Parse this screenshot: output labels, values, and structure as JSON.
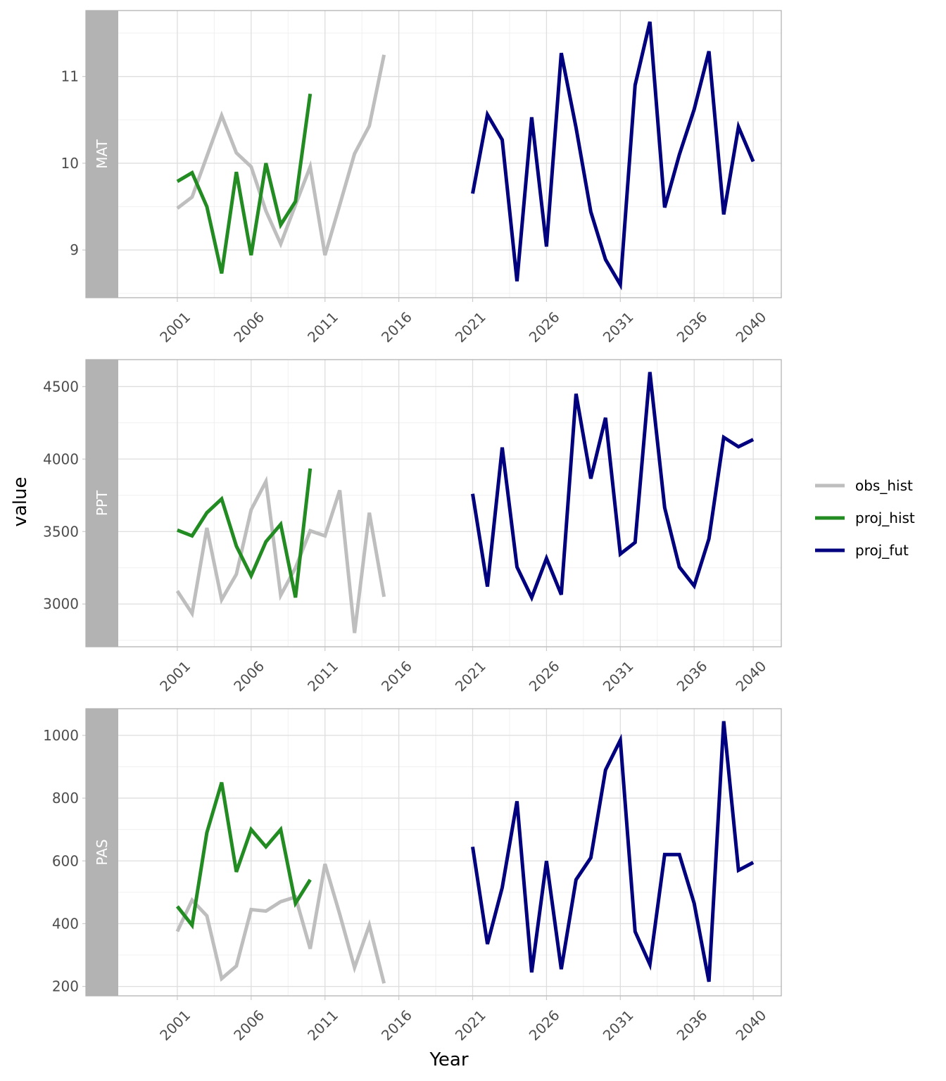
{
  "chart_data": {
    "type": "line",
    "xlabel": "Year",
    "ylabel": "value",
    "x_ticks": [
      "2001",
      "2006",
      "2011",
      "2016",
      "2021",
      "2026",
      "2031",
      "2036",
      "2040"
    ],
    "legend": {
      "position": "right",
      "entries": [
        {
          "name": "obs_hist",
          "color": "#bebebe"
        },
        {
          "name": "proj_hist",
          "color": "#228b22"
        },
        {
          "name": "proj_fut",
          "color": "#00007f"
        }
      ]
    },
    "grid": true,
    "panels": [
      {
        "label": "MAT",
        "ylim": [
          8.45,
          11.76
        ],
        "yticks": [
          9,
          10,
          11
        ],
        "series": [
          {
            "name": "obs_hist",
            "x": [
              2001,
              2002,
              2003,
              2004,
              2005,
              2006,
              2007,
              2008,
              2009,
              2010,
              2011,
              2012,
              2013,
              2014,
              2015
            ],
            "values": [
              9.48,
              9.61,
              10.08,
              10.55,
              10.12,
              9.96,
              9.45,
              9.07,
              9.52,
              9.96,
              8.94,
              9.52,
              10.11,
              10.43,
              11.25
            ]
          },
          {
            "name": "proj_hist",
            "x": [
              2001,
              2002,
              2003,
              2004,
              2005,
              2006,
              2007,
              2008,
              2009,
              2010
            ],
            "values": [
              9.79,
              9.89,
              9.5,
              8.73,
              9.9,
              8.94,
              10.0,
              9.29,
              9.56,
              10.8
            ]
          },
          {
            "name": "proj_fut",
            "x": [
              2021,
              2022,
              2023,
              2024,
              2025,
              2026,
              2027,
              2028,
              2029,
              2030,
              2031,
              2032,
              2033,
              2034,
              2035,
              2036,
              2037,
              2038,
              2039,
              2040
            ],
            "values": [
              9.65,
              10.56,
              10.27,
              8.64,
              10.53,
              9.04,
              11.27,
              10.41,
              9.44,
              8.89,
              8.6,
              10.9,
              11.63,
              9.49,
              10.1,
              10.62,
              11.29,
              9.41,
              10.42,
              10.02
            ]
          }
        ]
      },
      {
        "label": "PPT",
        "ylim": [
          2705,
          4686
        ],
        "yticks": [
          3000,
          3500,
          4000,
          4500
        ],
        "series": [
          {
            "name": "obs_hist",
            "x": [
              2001,
              2002,
              2003,
              2004,
              2005,
              2006,
              2007,
              2008,
              2009,
              2010,
              2011,
              2012,
              2013,
              2014,
              2015
            ],
            "values": [
              3090,
              2935,
              3525,
              3030,
              3205,
              3650,
              3845,
              3060,
              3250,
              3505,
              3470,
              3785,
              2800,
              3630,
              3050
            ]
          },
          {
            "name": "proj_hist",
            "x": [
              2001,
              2002,
              2003,
              2004,
              2005,
              2006,
              2007,
              2008,
              2009,
              2010
            ],
            "values": [
              3510,
              3470,
              3630,
              3725,
              3400,
              3195,
              3430,
              3550,
              3045,
              3935
            ]
          },
          {
            "name": "proj_fut",
            "x": [
              2021,
              2022,
              2023,
              2024,
              2025,
              2026,
              2027,
              2028,
              2029,
              2030,
              2031,
              2032,
              2033,
              2034,
              2035,
              2036,
              2037,
              2038,
              2039,
              2040
            ],
            "values": [
              3760,
              3120,
              4080,
              3255,
              3045,
              3315,
              3065,
              4450,
              3865,
              4285,
              3345,
              3425,
              4600,
              3665,
              3255,
              3125,
              3450,
              4150,
              4085,
              4135
            ]
          }
        ]
      },
      {
        "label": "PAS",
        "ylim": [
          170,
          1085
        ],
        "yticks": [
          200,
          400,
          600,
          800,
          1000
        ],
        "series": [
          {
            "name": "obs_hist",
            "x": [
              2001,
              2002,
              2003,
              2004,
              2005,
              2006,
              2007,
              2008,
              2009,
              2010,
              2011,
              2012,
              2013,
              2014,
              2015
            ],
            "values": [
              375,
              475,
              425,
              225,
              265,
              445,
              440,
              470,
              485,
              320,
              590,
              430,
              260,
              395,
              210
            ]
          },
          {
            "name": "proj_hist",
            "x": [
              2001,
              2002,
              2003,
              2004,
              2005,
              2006,
              2007,
              2008,
              2009,
              2010
            ],
            "values": [
              455,
              395,
              690,
              850,
              565,
              700,
              645,
              700,
              465,
              540
            ]
          },
          {
            "name": "proj_fut",
            "x": [
              2021,
              2022,
              2023,
              2024,
              2025,
              2026,
              2027,
              2028,
              2029,
              2030,
              2031,
              2032,
              2033,
              2034,
              2035,
              2036,
              2037,
              2038,
              2039,
              2040
            ],
            "values": [
              645,
              335,
              515,
              790,
              245,
              600,
              255,
              540,
              610,
              890,
              985,
              375,
              270,
              620,
              620,
              465,
              215,
              1045,
              570,
              595
            ]
          }
        ]
      }
    ]
  }
}
